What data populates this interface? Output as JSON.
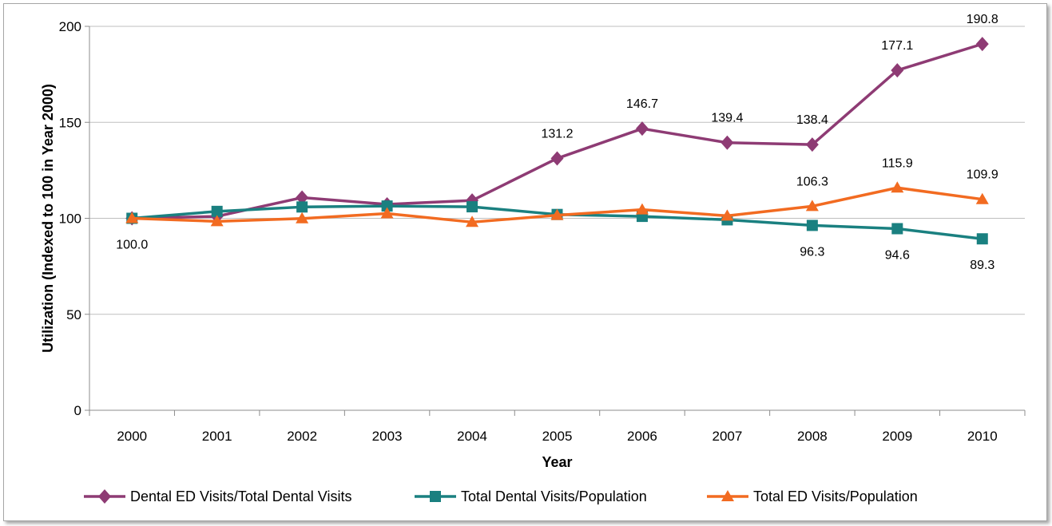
{
  "chart_data": {
    "type": "line",
    "xlabel": "Year",
    "ylabel": "Utilization (Indexed to 100 in Year 2000)",
    "ylim": [
      0,
      200
    ],
    "yticks": [
      0,
      50,
      100,
      150,
      200
    ],
    "grid": true,
    "legend_position": "bottom",
    "categories": [
      "2000",
      "2001",
      "2002",
      "2003",
      "2004",
      "2005",
      "2006",
      "2007",
      "2008",
      "2009",
      "2010"
    ],
    "series": [
      {
        "name": "Dental ED Visits/Total Dental Visits",
        "color": "#8e3b74",
        "marker": "diamond",
        "values": [
          100.0,
          101,
          110.8,
          107.3,
          109.3,
          131.2,
          146.7,
          139.4,
          138.4,
          177.1,
          190.8
        ],
        "labels": [
          null,
          null,
          null,
          null,
          null,
          "131.2",
          "146.7",
          "139.4",
          "138.4",
          "177.1",
          "190.8"
        ],
        "label_pos": "above"
      },
      {
        "name": "Total Dental Visits/Population",
        "color": "#1a8080",
        "marker": "square",
        "values": [
          100.0,
          103.6,
          105.9,
          106.4,
          106.0,
          102.0,
          101.0,
          99.2,
          96.3,
          94.6,
          89.3
        ],
        "labels": [
          "100.0",
          null,
          null,
          null,
          null,
          null,
          null,
          null,
          "96.3",
          "94.6",
          "89.3"
        ],
        "label_pos": "below"
      },
      {
        "name": "Total ED Visits/Population",
        "color": "#f26b21",
        "marker": "triangle",
        "values": [
          100.0,
          98.4,
          99.9,
          102.5,
          98.0,
          101.6,
          104.5,
          101.3,
          106.3,
          115.9,
          109.9
        ],
        "labels": [
          null,
          null,
          null,
          null,
          null,
          null,
          null,
          null,
          "106.3",
          "115.9",
          "109.9"
        ],
        "label_pos": "above"
      }
    ]
  }
}
